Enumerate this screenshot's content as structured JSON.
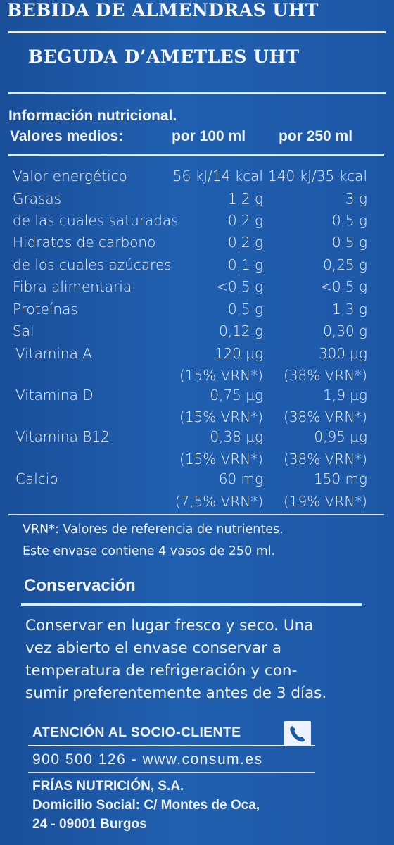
{
  "header": {
    "title_es": "BEBIDA DE ALMENDRAS UHT",
    "title_ca": "BEGUDA D’AMETLES UHT"
  },
  "nutrition": {
    "title": "Información nutricional.",
    "head_label": "Valores medios:",
    "col1": "por 100 ml",
    "col2": "por 250 ml",
    "rows": [
      {
        "label": "Valor energético",
        "v1": "56 kJ/14 kcal",
        "v2": "140 kJ/35 kcal"
      },
      {
        "label": "Grasas",
        "v1": "1,2 g",
        "v2": "3 g"
      },
      {
        "label": "de las cuales saturadas",
        "v1": "0,2 g",
        "v2": "0,5 g"
      },
      {
        "label": "Hidratos de carbono",
        "v1": "0,2 g",
        "v2": "0,5 g"
      },
      {
        "label": "de los cuales azúcares",
        "v1": "0,1 g",
        "v2": "0,25 g"
      },
      {
        "label": "Fibra alimentaria",
        "v1": "<0,5 g",
        "v2": "<0,5 g"
      },
      {
        "label": "Proteínas",
        "v1": "0,5 g",
        "v2": "1,3 g"
      },
      {
        "label": "Sal",
        "v1": "0,12 g",
        "v2": "0,30 g"
      },
      {
        "label": "Vitamina A",
        "v1": "120 µg",
        "v2": "300 µg"
      },
      {
        "label": "",
        "v1": "(15% VRN*)",
        "v2": "(38% VRN*)"
      },
      {
        "label": "Vitamina D",
        "v1": "0,75 µg",
        "v2": "1,9 µg"
      },
      {
        "label": "",
        "v1": "(15% VRN*)",
        "v2": "(38% VRN*)"
      },
      {
        "label": "Vitamina B12",
        "v1": "0,38 µg",
        "v2": "0,95 µg"
      },
      {
        "label": "",
        "v1": "(15% VRN*)",
        "v2": "(38% VRN*)"
      },
      {
        "label": "Calcio",
        "v1": "60 mg",
        "v2": "150 mg"
      },
      {
        "label": "",
        "v1": "(7,5% VRN*)",
        "v2": "(19% VRN*)"
      }
    ],
    "footnote1": "VRN*: Valores de referencia de nutrientes.",
    "footnote2": "Este envase contiene 4 vasos de 250 ml."
  },
  "conservation": {
    "title": "Conservación",
    "lines": [
      "Conservar en lugar fresco y seco. Una",
      "vez abierto el envase conservar a",
      "temperatura de refrigeración y con-",
      "sumir preferentemente antes de 3 días."
    ]
  },
  "contact": {
    "attention": "ATENCIÓN AL SOCIO-CLIENTE",
    "phone_icon": "phone-icon",
    "phone_web": "900 500 126 - www.consum.es",
    "company": "FRÍAS NUTRICIÓN, S.A.",
    "address1": "Domicilio Social: C/ Montes de Oca,",
    "address2": "24 - 09001 Burgos"
  },
  "colors": {
    "background": "#1f5aa8",
    "text": "#eef3fb"
  }
}
